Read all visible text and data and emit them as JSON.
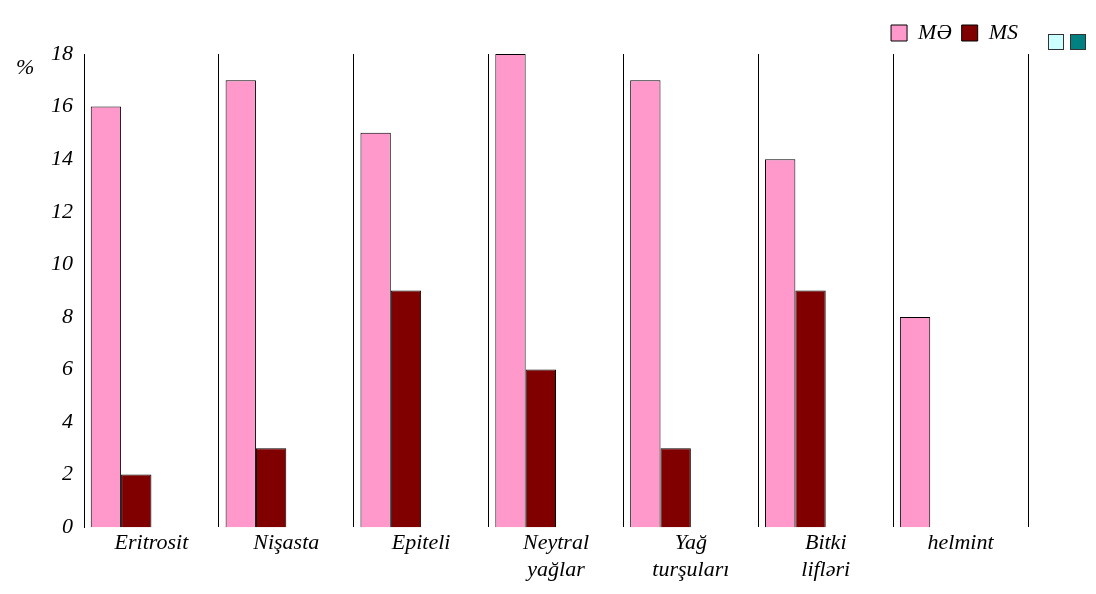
{
  "chart_data": {
    "type": "bar",
    "ylabel": "%",
    "categories": [
      "Eritrosit",
      "Nişasta",
      "Epiteli",
      "Neytral yağlar",
      "Yağ turşuları",
      "Bitki lifləri",
      "helmint"
    ],
    "series": [
      {
        "name": "MƏ",
        "color": "#ff99cc",
        "values": [
          16,
          17,
          15,
          18,
          17,
          14,
          8
        ]
      },
      {
        "name": "MS",
        "color": "#800000",
        "values": [
          2,
          3,
          9,
          6,
          3,
          9,
          null
        ]
      }
    ],
    "ylim": [
      0,
      18
    ],
    "yticks": [
      0,
      2,
      4,
      6,
      8,
      10,
      12,
      14,
      16,
      18
    ],
    "grid": "x",
    "legend": "top right"
  }
}
